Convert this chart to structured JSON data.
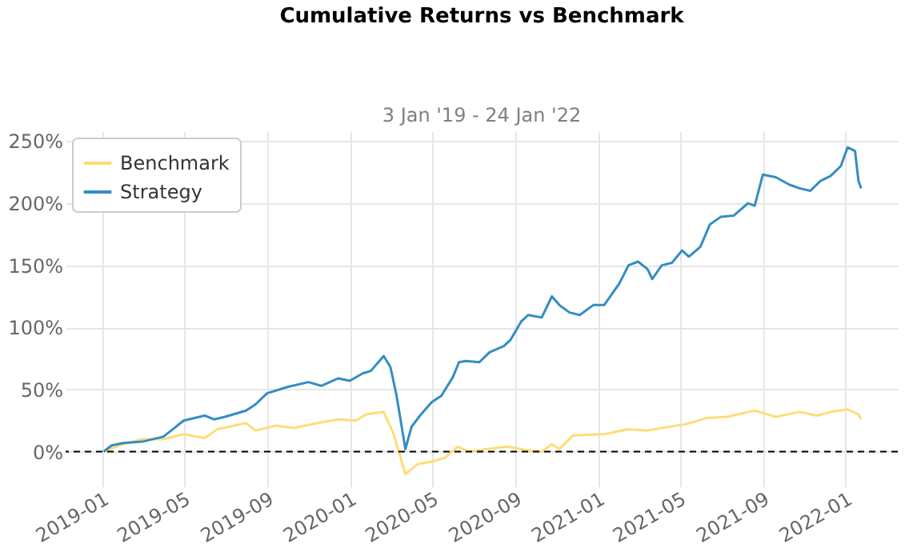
{
  "chart_data": {
    "type": "line",
    "title": "Cumulative Returns vs Benchmark",
    "subtitle": "3 Jan '19 - 24 Jan '22",
    "xlim": [
      "2018-11-08",
      "2022-03-19"
    ],
    "xticks": [
      {
        "value": "2019-01",
        "label": "2019-01"
      },
      {
        "value": "2019-05",
        "label": "2019-05"
      },
      {
        "value": "2019-09",
        "label": "2019-09"
      },
      {
        "value": "2020-01",
        "label": "2020-01"
      },
      {
        "value": "2020-05",
        "label": "2020-05"
      },
      {
        "value": "2020-09",
        "label": "2020-09"
      },
      {
        "value": "2021-01",
        "label": "2021-01"
      },
      {
        "value": "2021-05",
        "label": "2021-05"
      },
      {
        "value": "2021-09",
        "label": "2021-09"
      },
      {
        "value": "2022-01",
        "label": "2022-01"
      }
    ],
    "ylim": [
      -28,
      258
    ],
    "yticks": [
      {
        "value": 0,
        "label": "0%"
      },
      {
        "value": 50,
        "label": "50%"
      },
      {
        "value": 100,
        "label": "100%"
      },
      {
        "value": 150,
        "label": "150%"
      },
      {
        "value": 200,
        "label": "200%"
      },
      {
        "value": 250,
        "label": "250%"
      }
    ],
    "grid": true,
    "legend": "top left",
    "ref_lines": [
      {
        "axis": "y",
        "value": 0,
        "color": "#000000",
        "line_style": "dashed"
      }
    ],
    "series": [
      {
        "name": "Benchmark",
        "color": "#fedd78",
        "x": [
          "2019-01-03",
          "2019-02-01",
          "2019-03-01",
          "2019-04-01",
          "2019-05-01",
          "2019-06-01",
          "2019-06-20",
          "2019-08-01",
          "2019-08-15",
          "2019-09-15",
          "2019-10-10",
          "2019-11-15",
          "2019-12-15",
          "2020-01-10",
          "2020-01-25",
          "2020-02-20",
          "2020-03-05",
          "2020-03-23",
          "2020-04-10",
          "2020-05-01",
          "2020-05-20",
          "2020-06-08",
          "2020-06-25",
          "2020-07-20",
          "2020-08-20",
          "2020-09-20",
          "2020-10-10",
          "2020-10-25",
          "2020-11-05",
          "2020-11-25",
          "2021-01-10",
          "2021-02-15",
          "2021-03-15",
          "2021-04-15",
          "2021-05-10",
          "2021-06-10",
          "2021-07-10",
          "2021-08-20",
          "2021-09-20",
          "2021-10-25",
          "2021-11-20",
          "2021-12-10",
          "2022-01-04",
          "2022-01-20",
          "2022-01-24"
        ],
        "values": [
          0,
          6,
          10,
          10,
          14,
          11,
          18,
          23,
          17,
          21,
          19,
          23,
          26,
          25,
          30,
          32,
          15,
          -18,
          -10,
          -8,
          -5,
          4,
          0,
          2,
          4,
          1,
          0,
          6,
          2,
          13,
          14,
          18,
          17,
          20,
          22,
          27,
          28,
          33,
          28,
          32,
          29,
          32,
          34,
          30,
          26
        ]
      },
      {
        "name": "Strategy",
        "color": "#348dc1",
        "x": [
          "2019-01-03",
          "2019-01-15",
          "2019-02-01",
          "2019-03-01",
          "2019-04-01",
          "2019-04-15",
          "2019-05-01",
          "2019-06-01",
          "2019-06-15",
          "2019-07-01",
          "2019-08-01",
          "2019-08-15",
          "2019-09-01",
          "2019-10-01",
          "2019-11-01",
          "2019-11-20",
          "2019-12-15",
          "2020-01-01",
          "2020-01-20",
          "2020-02-01",
          "2020-02-20",
          "2020-03-01",
          "2020-03-10",
          "2020-03-23",
          "2020-04-01",
          "2020-04-15",
          "2020-05-01",
          "2020-05-15",
          "2020-06-01",
          "2020-06-10",
          "2020-06-20",
          "2020-07-10",
          "2020-07-25",
          "2020-08-15",
          "2020-08-25",
          "2020-09-10",
          "2020-09-20",
          "2020-10-10",
          "2020-10-25",
          "2020-11-05",
          "2020-11-20",
          "2020-12-05",
          "2020-12-25",
          "2021-01-10",
          "2021-02-01",
          "2021-02-15",
          "2021-03-01",
          "2021-03-15",
          "2021-03-22",
          "2021-04-05",
          "2021-04-20",
          "2021-05-05",
          "2021-05-15",
          "2021-06-01",
          "2021-06-15",
          "2021-07-01",
          "2021-07-20",
          "2021-08-10",
          "2021-08-20",
          "2021-09-01",
          "2021-09-20",
          "2021-10-10",
          "2021-10-25",
          "2021-11-10",
          "2021-11-25",
          "2021-12-10",
          "2021-12-25",
          "2022-01-04",
          "2022-01-15",
          "2022-01-20",
          "2022-01-24"
        ],
        "values": [
          0,
          5,
          7,
          8,
          12,
          18,
          25,
          29,
          26,
          28,
          33,
          38,
          47,
          52,
          56,
          53,
          59,
          57,
          63,
          65,
          77,
          68,
          45,
          2,
          20,
          30,
          40,
          45,
          60,
          72,
          73,
          72,
          80,
          85,
          90,
          105,
          110,
          108,
          125,
          118,
          112,
          110,
          118,
          118,
          135,
          150,
          153,
          147,
          139,
          150,
          152,
          162,
          157,
          165,
          183,
          189,
          190,
          200,
          198,
          223,
          221,
          215,
          212,
          210,
          218,
          222,
          230,
          245,
          242,
          218,
          212
        ]
      }
    ]
  }
}
